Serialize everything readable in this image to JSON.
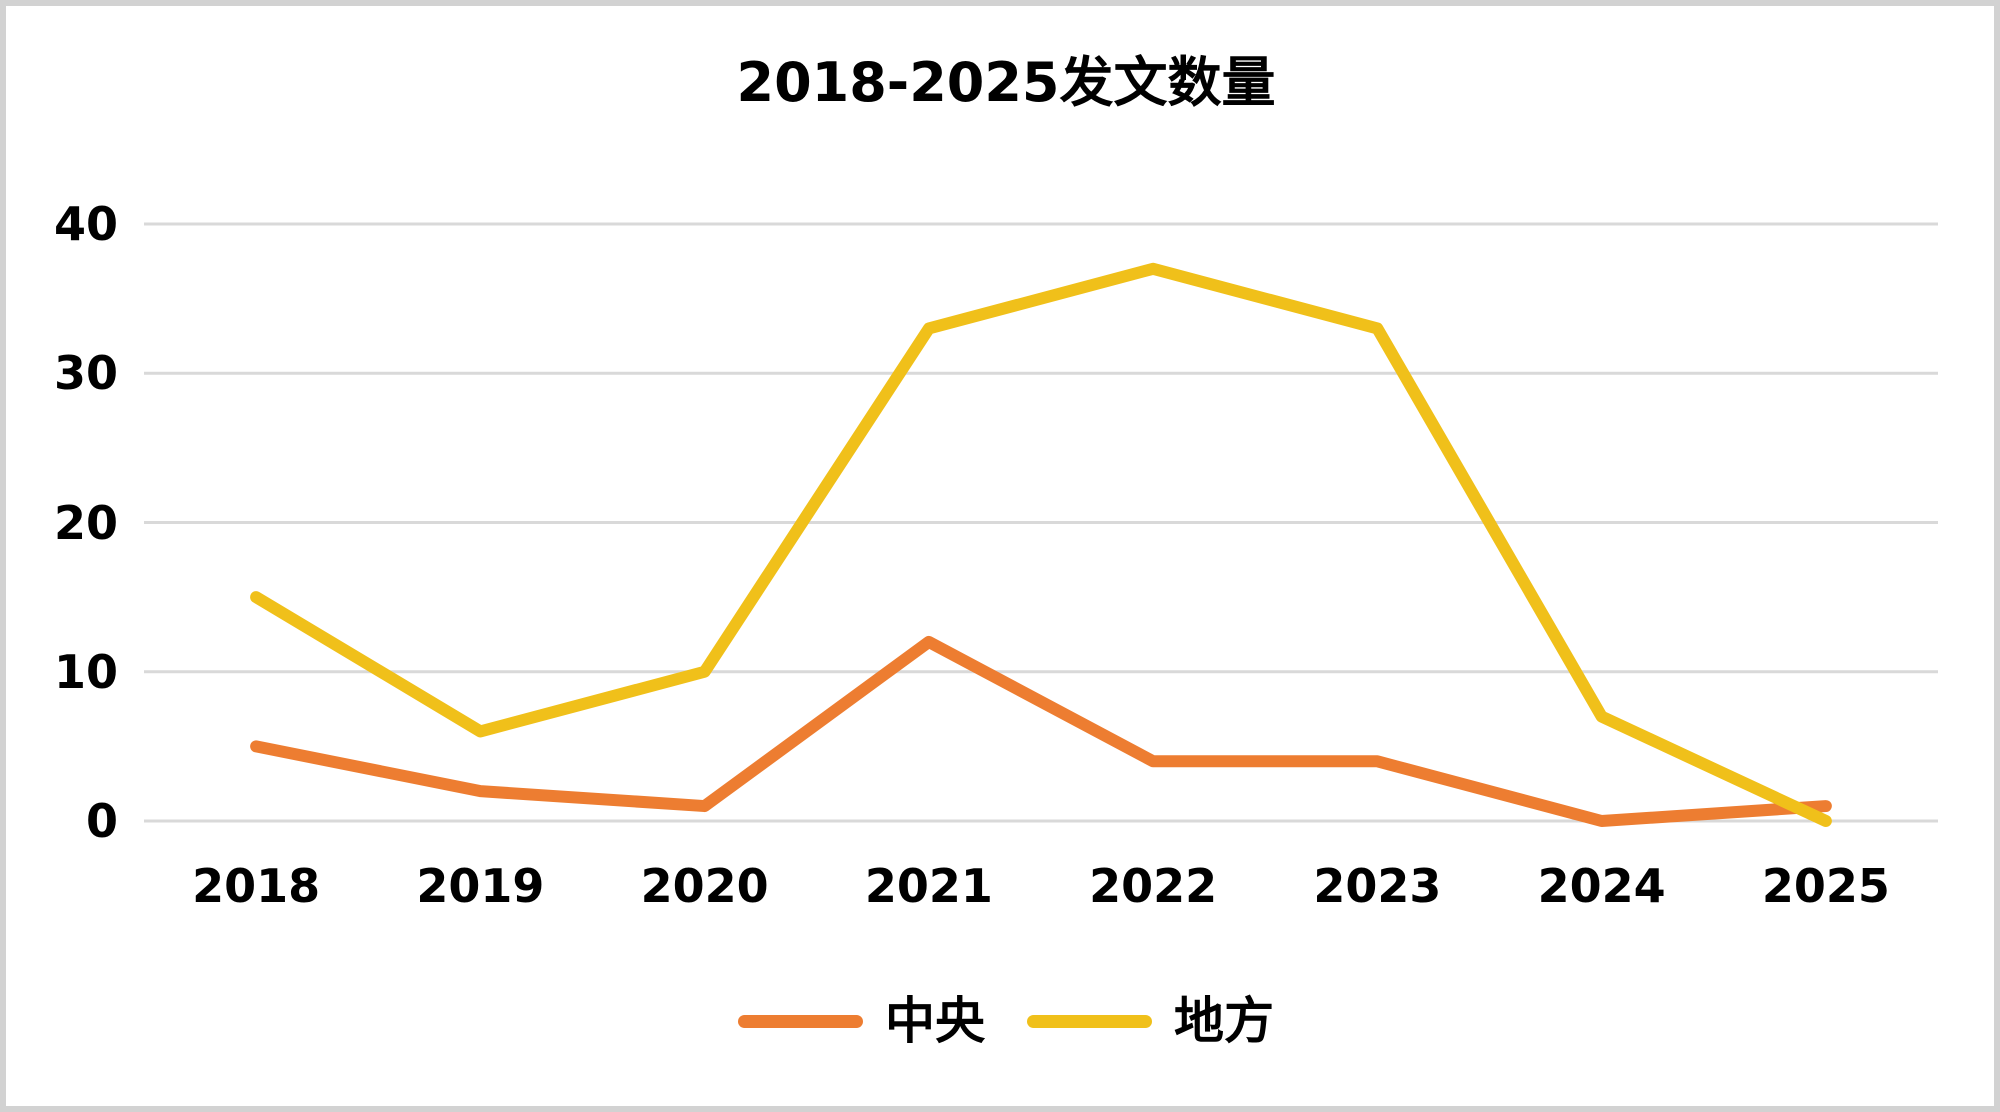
{
  "title": "2018-2025发文数量",
  "colors": {
    "central_series": "#ED7D31",
    "local_series": "#F0C01A",
    "gridline": "#D9D9D9",
    "frame_border": "#D2D2D2",
    "text": "#000000",
    "background": "#FFFFFF"
  },
  "chart_data": {
    "type": "line",
    "title": "2018-2025发文数量",
    "categories": [
      "2018",
      "2019",
      "2020",
      "2021",
      "2022",
      "2023",
      "2024",
      "2025"
    ],
    "series": [
      {
        "key": "central",
        "name": "中央",
        "color": "#ED7D31",
        "values": [
          5,
          2,
          1,
          12,
          4,
          4,
          0,
          1
        ]
      },
      {
        "key": "local",
        "name": "地方",
        "color": "#F0C01A",
        "values": [
          15,
          6,
          10,
          33,
          37,
          33,
          7,
          0
        ]
      }
    ],
    "xlabel": "",
    "ylabel": "",
    "ylim": [
      0,
      40
    ],
    "yticks": [
      0,
      10,
      20,
      30,
      40
    ],
    "grid": "horizontal",
    "legend_position": "bottom-center"
  }
}
